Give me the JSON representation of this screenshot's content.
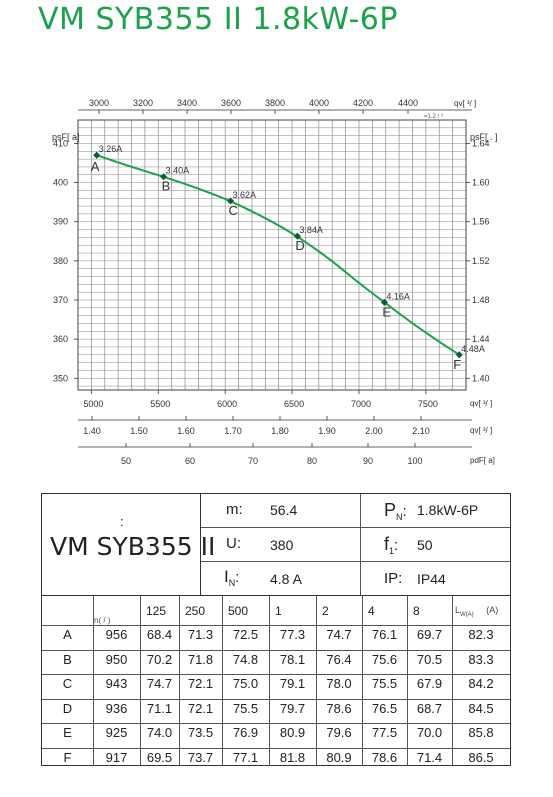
{
  "title": "VM SYB355 II 1.8kW-6P",
  "chart_data": {
    "type": "line",
    "curve_color": "#1aa34a",
    "points": [
      {
        "label": "A",
        "current": "3.26A",
        "qv": 5040,
        "psf": 407.0
      },
      {
        "label": "B",
        "current": "3.40A",
        "qv": 5540,
        "psf": 401.5
      },
      {
        "label": "C",
        "current": "3.62A",
        "qv": 6040,
        "psf": 395.3
      },
      {
        "label": "D",
        "current": "3.84A",
        "qv": 6540,
        "psf": 386.3
      },
      {
        "label": "E",
        "current": "4.16A",
        "qv": 7190,
        "psf": 369.4
      },
      {
        "label": "F",
        "current": "4.48A",
        "qv": 7750,
        "psf": 356.0
      }
    ],
    "curve": [
      [
        5040,
        407.0
      ],
      [
        5300,
        404.0
      ],
      [
        5540,
        401.5
      ],
      [
        5800,
        398.5
      ],
      [
        6040,
        395.3
      ],
      [
        6300,
        391.0
      ],
      [
        6540,
        386.3
      ],
      [
        6800,
        380.0
      ],
      [
        7000,
        374.3
      ],
      [
        7190,
        369.4
      ],
      [
        7400,
        364.0
      ],
      [
        7600,
        359.3
      ],
      [
        7750,
        356.0
      ]
    ],
    "xlim": [
      4900,
      7800
    ],
    "ylim": [
      347,
      416
    ],
    "left_axis": {
      "label": "p",
      "sub": "sF",
      "unit": "[ a]",
      "ticks": [
        410,
        400,
        390,
        380,
        370,
        360,
        350
      ]
    },
    "right_axis": {
      "label": "p",
      "sub": "sF",
      "unit": "[ .   ]",
      "ticks": [
        "1.64",
        "1.60",
        "1.56",
        "1.52",
        "1.48",
        "1.44",
        "1.40"
      ]
    },
    "top_axis": {
      "label": "q",
      "sub": "v",
      "unit": "[  ³/  ]",
      "factor": "=1.2  /  ³",
      "ticks": [
        3000,
        3200,
        3400,
        3600,
        3800,
        4000,
        4200,
        4400
      ]
    },
    "bottom_axis": {
      "label": "q",
      "sub": "v",
      "unit": "[  ³/  ]",
      "ticks": [
        5000,
        5500,
        6000,
        6500,
        7000,
        7500
      ]
    },
    "axis2": {
      "label": "q",
      "sub": "v",
      "unit": "[  ³/  ]",
      "ticks": [
        "1.40",
        "1.50",
        "1.60",
        "1.70",
        "1.80",
        "1.90",
        "2.00",
        "2.10"
      ]
    },
    "axis3": {
      "label": "p",
      "sub": "dF",
      "unit": "[ a]",
      "ticks": [
        50,
        60,
        70,
        80,
        90,
        100
      ]
    }
  },
  "spec": {
    "colon": ":",
    "model": "VM SYB355 II",
    "m_label": "m:",
    "m_value": "56.4",
    "pn_label": "P",
    "pn_sub": "N",
    "pn_value": "1.8kW-6P",
    "u_label": "U:",
    "u_value": "380",
    "f_label": "f",
    "f_sub": "1",
    "f_value": "50",
    "in_label": "I",
    "in_sub": "N",
    "in_value": "4.8  A",
    "ip_label": "IP:",
    "ip_value": "IP44"
  },
  "table": {
    "n_header": "n(  /  )",
    "freq_headers": [
      "125",
      "250",
      "500",
      "1",
      "2",
      "4",
      "8"
    ],
    "lw_header": "L",
    "lw_sub": "W(A)",
    "lw_unit": "(A)",
    "rows": [
      {
        "point": "A",
        "n": "956",
        "values": [
          "68.4",
          "71.3",
          "72.5",
          "77.3",
          "74.7",
          "76.1",
          "69.7"
        ],
        "lw": "82.3"
      },
      {
        "point": "B",
        "n": "950",
        "values": [
          "70.2",
          "71.8",
          "74.8",
          "78.1",
          "76.4",
          "75.6",
          "70.5"
        ],
        "lw": "83.3"
      },
      {
        "point": "C",
        "n": "943",
        "values": [
          "74.7",
          "72.1",
          "75.0",
          "79.1",
          "78.0",
          "75.5",
          "67.9"
        ],
        "lw": "84.2"
      },
      {
        "point": "D",
        "n": "936",
        "values": [
          "71.1",
          "72.1",
          "75.5",
          "79.7",
          "78.6",
          "76.5",
          "68.7"
        ],
        "lw": "84.5"
      },
      {
        "point": "E",
        "n": "925",
        "values": [
          "74.0",
          "73.5",
          "76.9",
          "80.9",
          "79.6",
          "77.5",
          "70.0"
        ],
        "lw": "85.8"
      },
      {
        "point": "F",
        "n": "917",
        "values": [
          "69.5",
          "73.7",
          "77.1",
          "81.8",
          "80.9",
          "78.6",
          "71.4"
        ],
        "lw": "86.5"
      }
    ]
  }
}
